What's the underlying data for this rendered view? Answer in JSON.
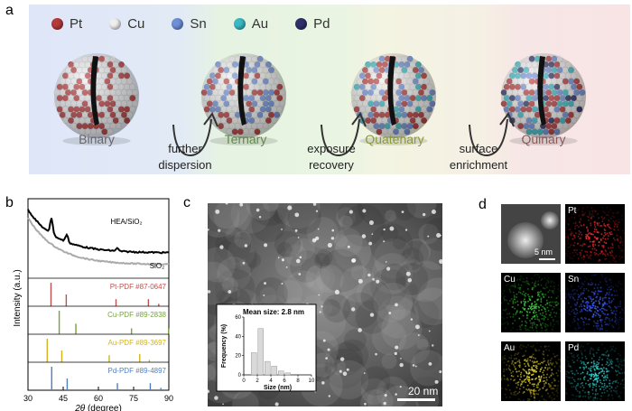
{
  "panel_a": {
    "letter": "a",
    "legend": [
      {
        "label": "Pt",
        "color": "#b53a3a"
      },
      {
        "label": "Cu",
        "color": "#eeeeee"
      },
      {
        "label": "Sn",
        "color": "#6f8fd6"
      },
      {
        "label": "Au",
        "color": "#3ab9c4"
      },
      {
        "label": "Pd",
        "color": "#2e3268"
      }
    ],
    "stages": [
      {
        "label": "Binary",
        "color": "#666666"
      },
      {
        "label": "Ternary",
        "color": "#5f8a4a"
      },
      {
        "label": "Quatenary",
        "color": "#8a9a3a"
      },
      {
        "label": "Quinary",
        "color": "#8a5a5a"
      }
    ],
    "transitions": [
      {
        "line1": "further",
        "line2": "dispersion"
      },
      {
        "line1": "exposure",
        "line2": "recovery"
      },
      {
        "line1": "surface",
        "line2": "enrichment"
      }
    ]
  },
  "panel_b": {
    "letter": "b",
    "ylabel": "Intensity (a.u.)",
    "xlabel_italic": "2θ",
    "xlabel_rest": " (degree)",
    "xticks": [
      "30",
      "45",
      "60",
      "75",
      "90"
    ],
    "curve_labels": {
      "hea": "HEA/SiO₂",
      "sio2": "SiO₂"
    },
    "pdfs": [
      {
        "label": "Pt-PDF #87-0647",
        "color": "#c0504d",
        "peaks": [
          39.8,
          46.3,
          67.5,
          81.3,
          85.7
        ],
        "heights": [
          1,
          0.5,
          0.3,
          0.3,
          0.1
        ]
      },
      {
        "label": "Cu-PDF #89-2838",
        "color": "#76a33c",
        "peaks": [
          43.3,
          50.4,
          74.1,
          89.9
        ],
        "heights": [
          1,
          0.45,
          0.25,
          0.25
        ]
      },
      {
        "label": "Au-PDF #89-3697",
        "color": "#d4b31c",
        "peaks": [
          38.2,
          44.4,
          64.6,
          77.6,
          81.7
        ],
        "heights": [
          1,
          0.5,
          0.3,
          0.35,
          0.1
        ]
      },
      {
        "label": "Pd-PDF #89-4897",
        "color": "#4f7fbf",
        "peaks": [
          40.1,
          46.7,
          68.1,
          82.1,
          86.6
        ],
        "heights": [
          1,
          0.5,
          0.3,
          0.3,
          0.1
        ]
      }
    ]
  },
  "panel_c": {
    "letter": "c",
    "scalebar": "20 nm",
    "inset": {
      "title": "Mean size: 2.8 nm",
      "ylabel": "Frequency (%)",
      "xlabel": "Size (nm)",
      "yticks": [
        "0",
        "20",
        "40",
        "60"
      ],
      "xticks": [
        "0",
        "2",
        "4",
        "6",
        "8",
        "10"
      ]
    }
  },
  "chart_data": {
    "type": "bar",
    "title": "Mean size: 2.8 nm",
    "xlabel": "Size (nm)",
    "ylabel": "Frequency (%)",
    "x": [
      1.5,
      2.5,
      3.5,
      4.5,
      5.5,
      6.5
    ],
    "values": [
      23,
      48,
      14,
      9,
      4,
      2
    ],
    "xlim": [
      0,
      10
    ],
    "ylim": [
      0,
      60
    ]
  },
  "panel_d": {
    "letter": "d",
    "scalebar": "5 nm",
    "maps": [
      {
        "label": "",
        "color": "#ffffff"
      },
      {
        "label": "Pt",
        "color": "#ff2a2a"
      },
      {
        "label": "Cu",
        "color": "#38d338"
      },
      {
        "label": "Sn",
        "color": "#3a5cff"
      },
      {
        "label": "Au",
        "color": "#f0e030"
      },
      {
        "label": "Pd",
        "color": "#30d2d2"
      }
    ]
  }
}
